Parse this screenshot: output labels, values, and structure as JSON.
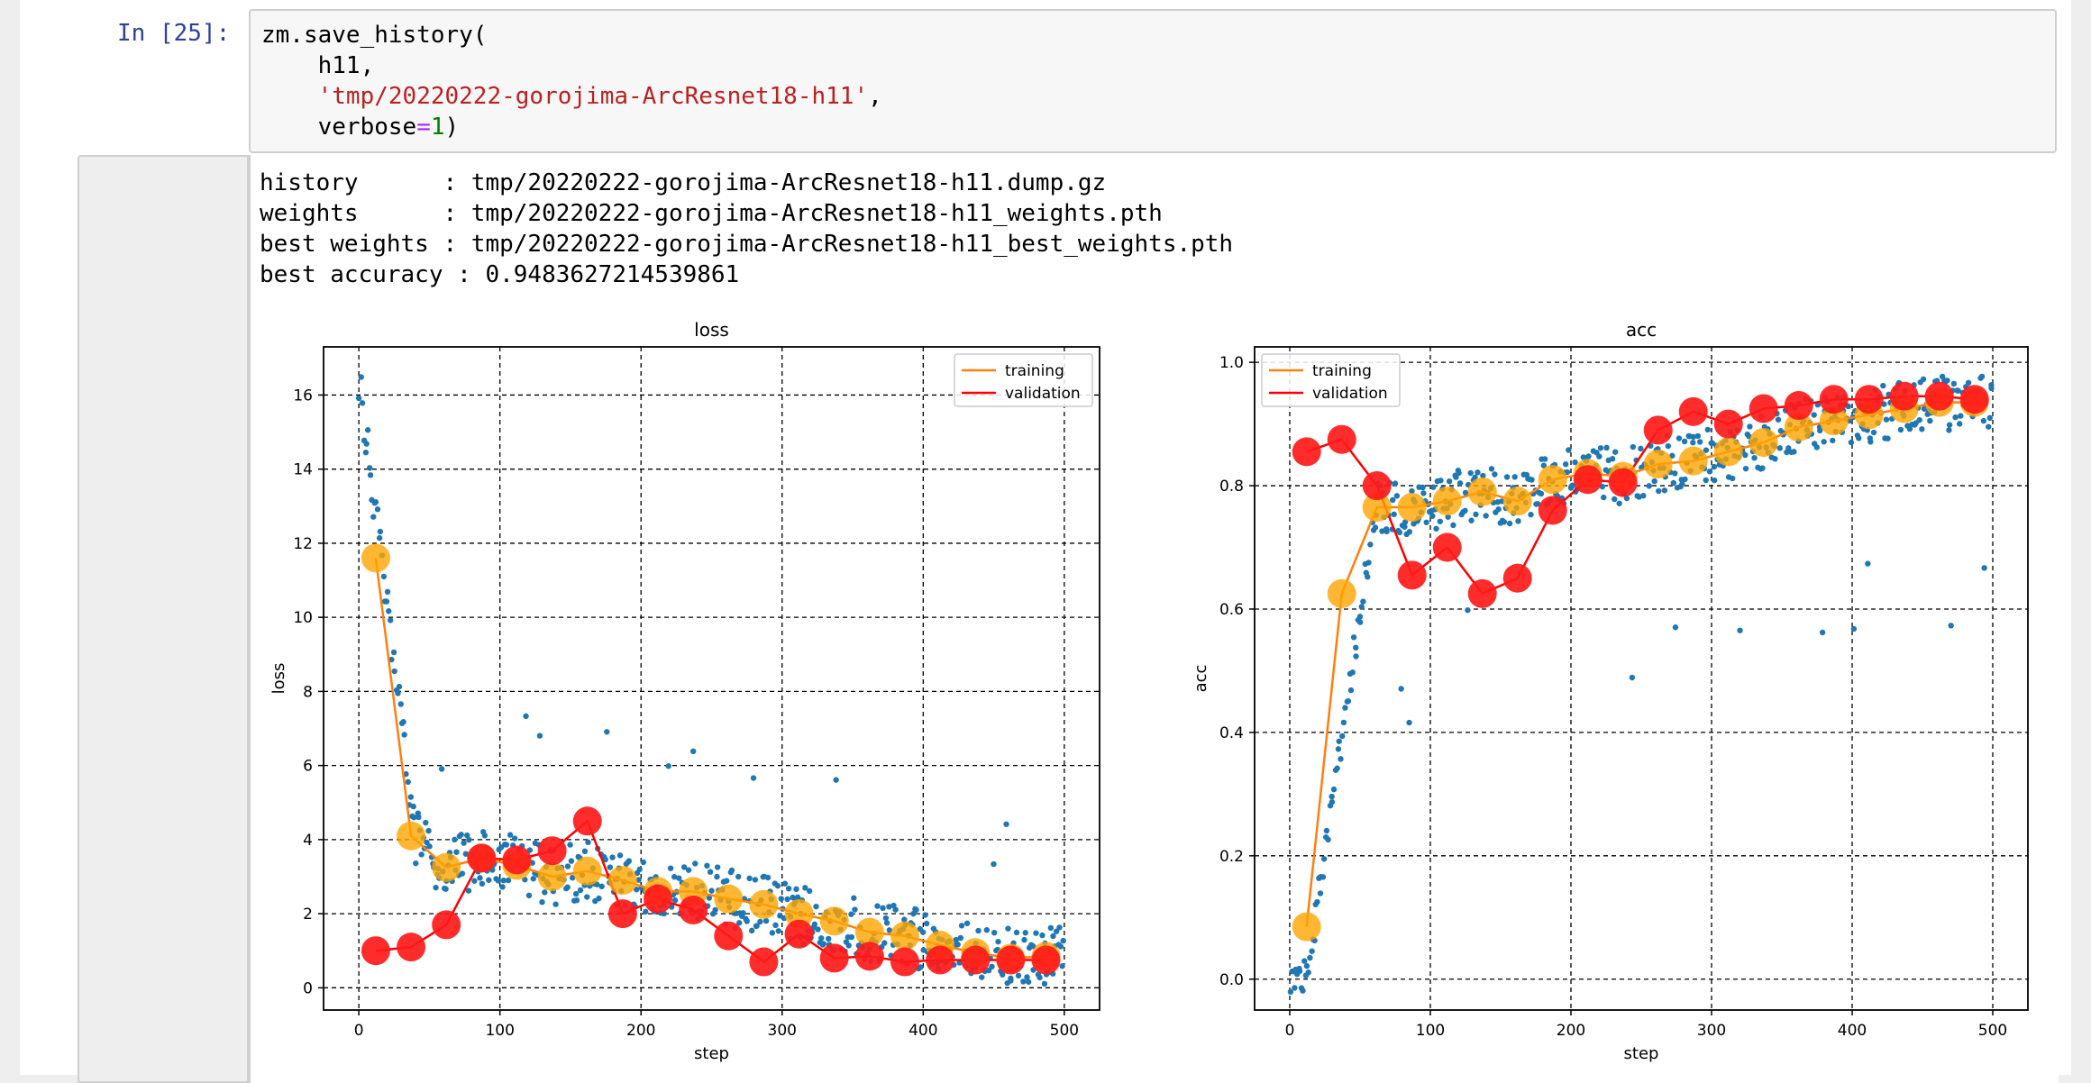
{
  "cell": {
    "prompt": "In [25]:",
    "code": {
      "line1": "zm.save_history(",
      "line2": "    h11,",
      "indent": "    ",
      "path_string": "'tmp/20220222-gorojima-ArcResnet18-h11'",
      "comma": ",",
      "verbose_kw": "verbose",
      "equals": "=",
      "one": "1",
      "close": ")"
    }
  },
  "output": {
    "lines": [
      "history      : tmp/20220222-gorojima-ArcResnet18-h11.dump.gz",
      "weights      : tmp/20220222-gorojima-ArcResnet18-h11_weights.pth",
      "best weights : tmp/20220222-gorojima-ArcResnet18-h11_best_weights.pth",
      "best accuracy : 0.9483627214539861"
    ]
  },
  "colors": {
    "training": "#ff7f0e",
    "validation": "#ff0000",
    "points": "#1f77b4",
    "big_training": "#ffa500",
    "big_validation": "#ff1a1a"
  },
  "chart_data": [
    {
      "type": "scatter",
      "title": "loss",
      "xlabel": "step",
      "ylabel": "loss",
      "xlim": [
        -25,
        525
      ],
      "ylim": [
        -0.6,
        17.3
      ],
      "xticks": [
        0,
        100,
        200,
        300,
        400,
        500
      ],
      "yticks": [
        0,
        2,
        4,
        6,
        8,
        10,
        12,
        14,
        16
      ],
      "grid": true,
      "legend_position": "upper right",
      "series": [
        {
          "name": "training",
          "x": [
            12,
            37,
            62,
            87,
            112,
            137,
            162,
            187,
            212,
            237,
            262,
            287,
            312,
            337,
            362,
            387,
            412,
            437,
            462,
            487
          ],
          "values": [
            11.6,
            4.1,
            3.25,
            3.5,
            3.3,
            3.0,
            3.15,
            2.9,
            2.6,
            2.6,
            2.4,
            2.25,
            2.0,
            1.8,
            1.5,
            1.4,
            1.15,
            0.95,
            0.8,
            0.85
          ]
        },
        {
          "name": "validation",
          "x": [
            12,
            37,
            62,
            87,
            112,
            137,
            162,
            187,
            212,
            237,
            262,
            287,
            312,
            337,
            362,
            387,
            412,
            437,
            462,
            487
          ],
          "values": [
            1.0,
            1.1,
            1.7,
            3.5,
            3.45,
            3.7,
            4.5,
            2.0,
            2.4,
            2.1,
            1.4,
            0.7,
            1.45,
            0.8,
            0.85,
            0.7,
            0.75,
            0.75,
            0.75,
            0.75
          ]
        }
      ]
    },
    {
      "type": "scatter",
      "title": "acc",
      "xlabel": "step",
      "ylabel": "acc",
      "xlim": [
        -25,
        525
      ],
      "ylim": [
        -0.05,
        1.025
      ],
      "xticks": [
        0,
        100,
        200,
        300,
        400,
        500
      ],
      "yticks": [
        0.0,
        0.2,
        0.4,
        0.6,
        0.8,
        1.0
      ],
      "grid": true,
      "legend_position": "upper left",
      "series": [
        {
          "name": "training",
          "x": [
            12,
            37,
            62,
            87,
            112,
            137,
            162,
            187,
            212,
            237,
            262,
            287,
            312,
            337,
            362,
            387,
            412,
            437,
            462,
            487
          ],
          "values": [
            0.085,
            0.625,
            0.765,
            0.765,
            0.775,
            0.79,
            0.775,
            0.81,
            0.82,
            0.815,
            0.835,
            0.84,
            0.855,
            0.87,
            0.895,
            0.905,
            0.915,
            0.925,
            0.935,
            0.935
          ]
        },
        {
          "name": "validation",
          "x": [
            12,
            37,
            62,
            87,
            112,
            137,
            162,
            187,
            212,
            237,
            262,
            287,
            312,
            337,
            362,
            387,
            412,
            437,
            462,
            487
          ],
          "values": [
            0.855,
            0.875,
            0.8,
            0.655,
            0.7,
            0.625,
            0.65,
            0.76,
            0.81,
            0.805,
            0.89,
            0.92,
            0.9,
            0.925,
            0.93,
            0.94,
            0.94,
            0.945,
            0.945,
            0.94
          ]
        }
      ]
    }
  ]
}
